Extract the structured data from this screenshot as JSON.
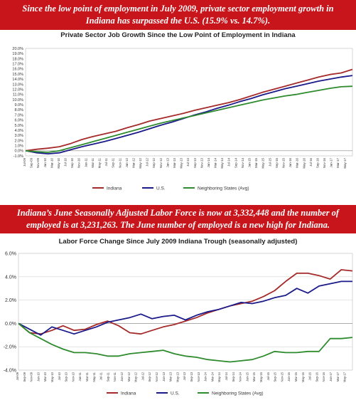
{
  "banners": {
    "top": "Since the low point of employment in July 2009, private sector employment growth in Indiana has surpassed the U.S. (15.9% vs. 14.7%).",
    "middle": "Indiana’s June Seasonally Adjusted  Labor Force is now at 3,332,448 and the number of employed is at 3,231,263. The June number of employed is a new high for Indiana."
  },
  "colors": {
    "indiana": "#a52a2a",
    "us": "#1a1a8a",
    "neighbors": "#2e8b2e",
    "banner": "#c8141b"
  },
  "chart_data": [
    {
      "type": "line",
      "title": "Private Sector Job Growth Since the Low Point of Employment in Indiana",
      "xlabel": "",
      "ylabel": "",
      "x_range": [
        "Jul-09",
        "Jun-17"
      ],
      "ylim": [
        -1.0,
        20.0
      ],
      "y_ticks": [
        "-1.0%",
        "0.0%",
        "1.0%",
        "2.0%",
        "3.0%",
        "4.0%",
        "5.0%",
        "6.0%",
        "7.0%",
        "8.0%",
        "9.0%",
        "10.0%",
        "11.0%",
        "12.0%",
        "13.0%",
        "14.0%",
        "15.0%",
        "16.0%",
        "17.0%",
        "18.0%",
        "19.0%",
        "20.0%"
      ],
      "x_ticks": [
        "Jul-09",
        "Sep-09",
        "Nov-09",
        "Jan-10",
        "Mar-10",
        "May-10",
        "Jul-10",
        "Sep-10",
        "Nov-10",
        "Jan-11",
        "Mar-11",
        "May-11",
        "Jul-11",
        "Sep-11",
        "Nov-11",
        "Jan-12",
        "Mar-12",
        "May-12",
        "Jul-12",
        "Sep-12",
        "Nov-12",
        "Jan-13",
        "Mar-13",
        "May-13",
        "Jul-13",
        "Sep-13",
        "Nov-13",
        "Jan-14",
        "Mar-14",
        "May-14",
        "Jul-14",
        "Sep-14",
        "Nov-14",
        "Jan-15",
        "Mar-15",
        "May-15",
        "Jul-15",
        "Sep-15",
        "Nov-15",
        "Jan-16",
        "Mar-16",
        "May-16",
        "Jul-16",
        "Sep-16",
        "Nov-16",
        "Jan-17",
        "Mar-17",
        "May-17"
      ],
      "grid": false,
      "legend_position": "bottom",
      "series": [
        {
          "name": "Indiana",
          "color": "#a52a2a",
          "values": [
            0.0,
            0.3,
            0.5,
            0.8,
            1.4,
            2.2,
            2.8,
            3.3,
            3.8,
            4.5,
            5.1,
            5.8,
            6.3,
            6.8,
            7.3,
            7.9,
            8.4,
            8.9,
            9.4,
            10.0,
            10.7,
            11.4,
            12.0,
            12.6,
            13.2,
            13.8,
            14.4,
            14.9,
            15.2,
            15.9
          ]
        },
        {
          "name": "U.S.",
          "color": "#1a1a8a",
          "values": [
            0.0,
            -0.4,
            -0.6,
            -0.4,
            0.2,
            0.8,
            1.3,
            1.8,
            2.4,
            3.0,
            3.6,
            4.3,
            5.0,
            5.6,
            6.3,
            7.0,
            7.6,
            8.3,
            8.9,
            9.6,
            10.2,
            10.9,
            11.5,
            12.1,
            12.6,
            13.1,
            13.6,
            14.0,
            14.4,
            14.7
          ]
        },
        {
          "name": "Neighboring States (Avg)",
          "color": "#2e8b2e",
          "values": [
            0.0,
            -0.2,
            -0.3,
            0.0,
            0.6,
            1.2,
            1.8,
            2.4,
            3.0,
            3.6,
            4.2,
            4.8,
            5.4,
            5.9,
            6.4,
            6.9,
            7.4,
            7.9,
            8.4,
            8.9,
            9.4,
            9.9,
            10.3,
            10.7,
            11.0,
            11.4,
            11.8,
            12.2,
            12.5,
            12.6
          ]
        }
      ]
    },
    {
      "type": "line",
      "title": "Labor Force Change Since July 2009 Indiana Trough (seasonally adjusted)",
      "xlabel": "",
      "ylabel": "",
      "x_range": [
        "Jul-09",
        "Jun-17"
      ],
      "ylim": [
        -4.0,
        6.0
      ],
      "y_ticks": [
        "-4.0%",
        "-2.0%",
        "0.0%",
        "2.0%",
        "4.0%",
        "6.0%"
      ],
      "x_ticks": [
        "Jul-09",
        "Sep-09",
        "Nov-09",
        "Jan-10",
        "Mar-10",
        "May-10",
        "Jul-10",
        "Sep-10",
        "Nov-10",
        "Jan-11",
        "Mar-11",
        "May-11",
        "Jul-11",
        "Sep-11",
        "Nov-11",
        "Jan-12",
        "Mar-12",
        "May-12",
        "Jul-12",
        "Sep-12",
        "Nov-12",
        "Jan-13",
        "Mar-13",
        "May-13",
        "Jul-13",
        "Sep-13",
        "Nov-13",
        "Jan-14",
        "Mar-14",
        "May-14",
        "Jul-14",
        "Sep-14",
        "Nov-14",
        "Jan-15",
        "Mar-15",
        "May-15",
        "Jul-15",
        "Sep-15",
        "Nov-15",
        "Jan-16",
        "Mar-16",
        "May-16",
        "Jul-16",
        "Sep-16",
        "Nov-16",
        "Jan-17",
        "Mar-17",
        "May-17"
      ],
      "grid": true,
      "legend_position": "bottom",
      "series": [
        {
          "name": "Indiana",
          "color": "#a52a2a",
          "values": [
            0.0,
            -0.8,
            -0.9,
            -0.6,
            -0.2,
            -0.6,
            -0.5,
            -0.1,
            0.2,
            -0.2,
            -0.8,
            -0.9,
            -0.6,
            -0.3,
            -0.1,
            0.2,
            0.5,
            0.9,
            1.2,
            1.5,
            1.7,
            1.9,
            2.3,
            2.8,
            3.6,
            4.3,
            4.3,
            4.1,
            3.8,
            4.6,
            4.5
          ]
        },
        {
          "name": "U.S.",
          "color": "#1a1a8a",
          "values": [
            0.0,
            -0.5,
            -1.0,
            -0.3,
            -0.6,
            -0.9,
            -0.6,
            -0.3,
            0.1,
            0.3,
            0.5,
            0.8,
            0.4,
            0.6,
            0.7,
            0.3,
            0.7,
            1.0,
            1.2,
            1.5,
            1.8,
            1.7,
            1.9,
            2.2,
            2.4,
            3.0,
            2.6,
            3.2,
            3.4,
            3.6,
            3.6
          ]
        },
        {
          "name": "Neighboring States (Avg)",
          "color": "#2e8b2e",
          "values": [
            0.0,
            -0.8,
            -1.3,
            -1.8,
            -2.2,
            -2.5,
            -2.5,
            -2.6,
            -2.8,
            -2.8,
            -2.6,
            -2.5,
            -2.4,
            -2.3,
            -2.6,
            -2.8,
            -2.9,
            -3.1,
            -3.2,
            -3.3,
            -3.2,
            -3.1,
            -2.8,
            -2.4,
            -2.5,
            -2.5,
            -2.4,
            -2.4,
            -1.3,
            -1.3,
            -1.2
          ]
        }
      ]
    }
  ]
}
